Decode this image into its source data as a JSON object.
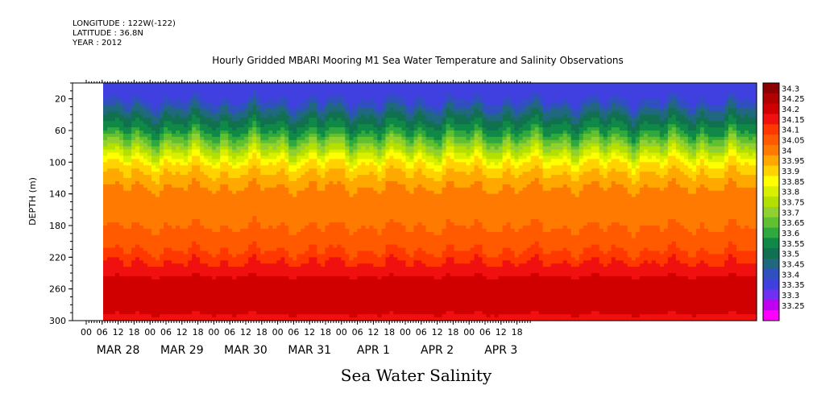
{
  "header": {
    "longitude": "LONGITUDE : 122W(-122)",
    "latitude": "LATITUDE : 36.8N",
    "year": "YEAR : 2012"
  },
  "chart_data": {
    "type": "heatmap",
    "title": "Hourly Gridded MBARI Mooring M1 Sea Water Temperature and Salinity Observations",
    "xlabel": "Sea Water Salinity",
    "ylabel": "DEPTH (m)",
    "ylim": [
      300,
      0
    ],
    "y_ticks": [
      20,
      60,
      100,
      140,
      180,
      220,
      260,
      300
    ],
    "x_hour_ticks": [
      "00",
      "06",
      "12",
      "18",
      "00",
      "06",
      "12",
      "18",
      "00",
      "06",
      "12",
      "18",
      "00",
      "06",
      "12",
      "18",
      "00",
      "06",
      "12",
      "18",
      "00",
      "06",
      "12",
      "18",
      "00",
      "06",
      "12",
      "18"
    ],
    "x_date_labels": [
      "MAR 28",
      "MAR 29",
      "MAR 30",
      "MAR 31",
      "APR  1",
      "APR  2",
      "APR  3"
    ],
    "colorbar": {
      "levels": [
        34.3,
        34.25,
        34.2,
        34.15,
        34.1,
        34.05,
        34,
        33.95,
        33.9,
        33.85,
        33.8,
        33.75,
        33.7,
        33.65,
        33.6,
        33.55,
        33.5,
        33.45,
        33.4,
        33.35,
        33.3,
        33.25
      ],
      "colors": [
        "#8b0000",
        "#b00000",
        "#d00000",
        "#f01010",
        "#ff3800",
        "#ff5a00",
        "#ff7a00",
        "#ffa800",
        "#ffd200",
        "#ffff00",
        "#d8f000",
        "#b4e000",
        "#90d030",
        "#60c030",
        "#30a840",
        "#108848",
        "#107050",
        "#206880",
        "#3050c0",
        "#4040e0",
        "#7030f0",
        "#c000f0",
        "#ff00ff"
      ]
    },
    "depth_profile": [
      {
        "depth": 10,
        "salinity": 33.35
      },
      {
        "depth": 20,
        "salinity": 33.4
      },
      {
        "depth": 40,
        "salinity": 33.5
      },
      {
        "depth": 60,
        "salinity": 33.6
      },
      {
        "depth": 80,
        "salinity": 33.75
      },
      {
        "depth": 100,
        "salinity": 33.9
      },
      {
        "depth": 120,
        "salinity": 33.98
      },
      {
        "depth": 140,
        "salinity": 34.02
      },
      {
        "depth": 180,
        "salinity": 34.05
      },
      {
        "depth": 210,
        "salinity": 34.1
      },
      {
        "depth": 235,
        "salinity": 34.18
      },
      {
        "depth": 260,
        "salinity": 34.25
      },
      {
        "depth": 280,
        "salinity": 34.22
      },
      {
        "depth": 300,
        "salinity": 34.18
      }
    ]
  }
}
